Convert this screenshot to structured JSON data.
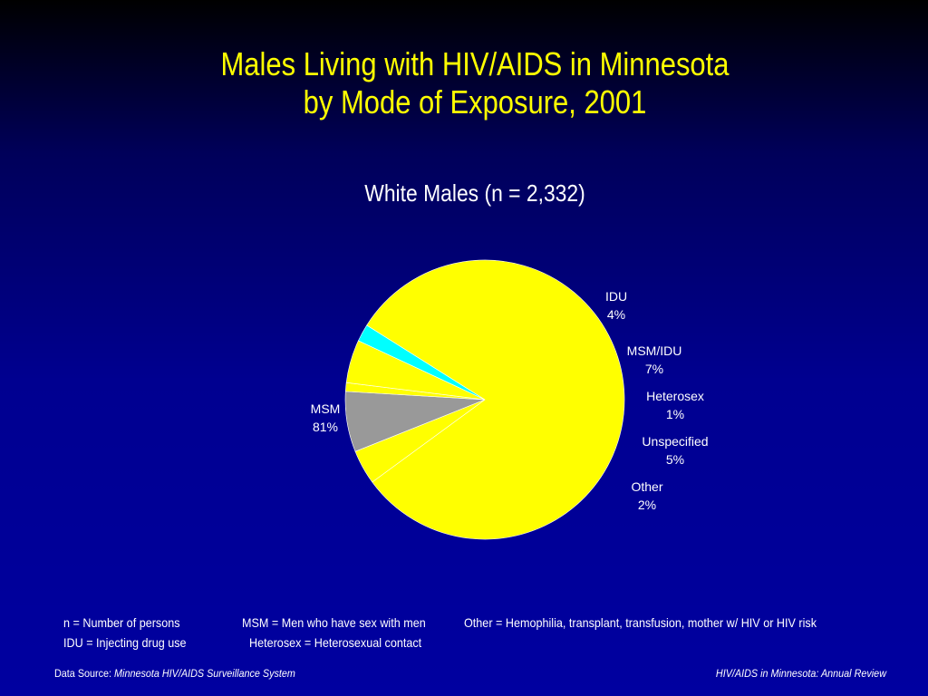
{
  "title_lines": [
    "Males Living with HIV/AIDS in Minnesota",
    "by Mode of Exposure, 2001"
  ],
  "chart_data": {
    "type": "pie",
    "title": "White Males (n = 2,332)",
    "slices": [
      {
        "label": "MSM",
        "value": 81,
        "value_label": "81%",
        "color": "#ffff00"
      },
      {
        "label": "IDU",
        "value": 4,
        "value_label": "4%",
        "color": "#ffff00"
      },
      {
        "label": "MSM/IDU",
        "value": 7,
        "value_label": "7%",
        "color": "#999999"
      },
      {
        "label": "Heterosex",
        "value": 1,
        "value_label": "1%",
        "color": "#ffff00"
      },
      {
        "label": "Unspecified",
        "value": 5,
        "value_label": "5%",
        "color": "#ffff00"
      },
      {
        "label": "Other",
        "value": 2,
        "value_label": "2%",
        "color": "#00ffff"
      }
    ]
  },
  "footnotes": {
    "n": "n = Number of persons",
    "msm": "MSM = Men who have sex with men",
    "other": "Other = Hemophilia, transplant, transfusion, mother w/ HIV or HIV risk",
    "idu": "IDU = Injecting drug use",
    "heterosex": "Heterosex = Heterosexual contact"
  },
  "source": {
    "label": "Data Source:",
    "value": "Minnesota HIV/AIDS Surveillance System"
  },
  "review": "HIV/AIDS in Minnesota: Annual Review"
}
